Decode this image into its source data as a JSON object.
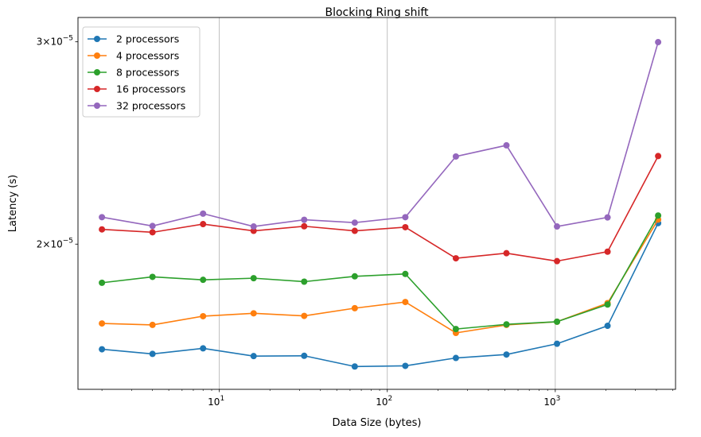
{
  "chart_data": {
    "type": "line",
    "title": "Blocking Ring shift",
    "xlabel": "Data Size (bytes)",
    "ylabel": "Latency (s)",
    "x_scale": "log",
    "y_scale": "log",
    "x_grid": true,
    "y_grid": false,
    "legend_position": "upper-left",
    "x_ticks": [
      {
        "value": 10,
        "base": "10",
        "exp": "1"
      },
      {
        "value": 100,
        "base": "10",
        "exp": "2"
      },
      {
        "value": 1000,
        "base": "10",
        "exp": "3"
      }
    ],
    "y_ticks": [
      {
        "value": 2e-05,
        "mant": "2",
        "base": "10",
        "exp": "−5"
      },
      {
        "value": 3e-05,
        "mant": "3",
        "base": "10",
        "exp": "−5"
      }
    ],
    "xlim": [
      1.44,
      5200
    ],
    "ylim": [
      1.495e-05,
      3.15e-05
    ],
    "x": [
      2,
      4,
      8,
      16,
      32,
      64,
      128,
      256,
      512,
      1024,
      2048,
      4096
    ],
    "series": [
      {
        "name": "2 processors",
        "color": "#1f77b4",
        "values": [
          1.62e-05,
          1.605e-05,
          1.623e-05,
          1.598e-05,
          1.599e-05,
          1.565e-05,
          1.567e-05,
          1.592e-05,
          1.603e-05,
          1.638e-05,
          1.698e-05,
          2.086e-05
        ]
      },
      {
        "name": "4 processors",
        "color": "#ff7f0e",
        "values": [
          1.706e-05,
          1.701e-05,
          1.731e-05,
          1.741e-05,
          1.732e-05,
          1.759e-05,
          1.781e-05,
          1.674e-05,
          1.701e-05,
          1.712e-05,
          1.777e-05,
          2.101e-05
        ]
      },
      {
        "name": "8 processors",
        "color": "#2ca02c",
        "values": [
          1.851e-05,
          1.873e-05,
          1.862e-05,
          1.868e-05,
          1.855e-05,
          1.875e-05,
          1.884e-05,
          1.687e-05,
          1.703e-05,
          1.712e-05,
          1.772e-05,
          2.118e-05
        ]
      },
      {
        "name": "16 processors",
        "color": "#d62728",
        "values": [
          2.06e-05,
          2.048e-05,
          2.082e-05,
          2.054e-05,
          2.073e-05,
          2.054e-05,
          2.069e-05,
          1.944e-05,
          1.964e-05,
          1.933e-05,
          1.97e-05,
          2.386e-05
        ]
      },
      {
        "name": "32 processors",
        "color": "#9467bd",
        "values": [
          2.111e-05,
          2.074e-05,
          2.126e-05,
          2.072e-05,
          2.1e-05,
          2.088e-05,
          2.111e-05,
          2.384e-05,
          2.438e-05,
          2.072e-05,
          2.11e-05,
          2.998e-05
        ]
      }
    ]
  }
}
